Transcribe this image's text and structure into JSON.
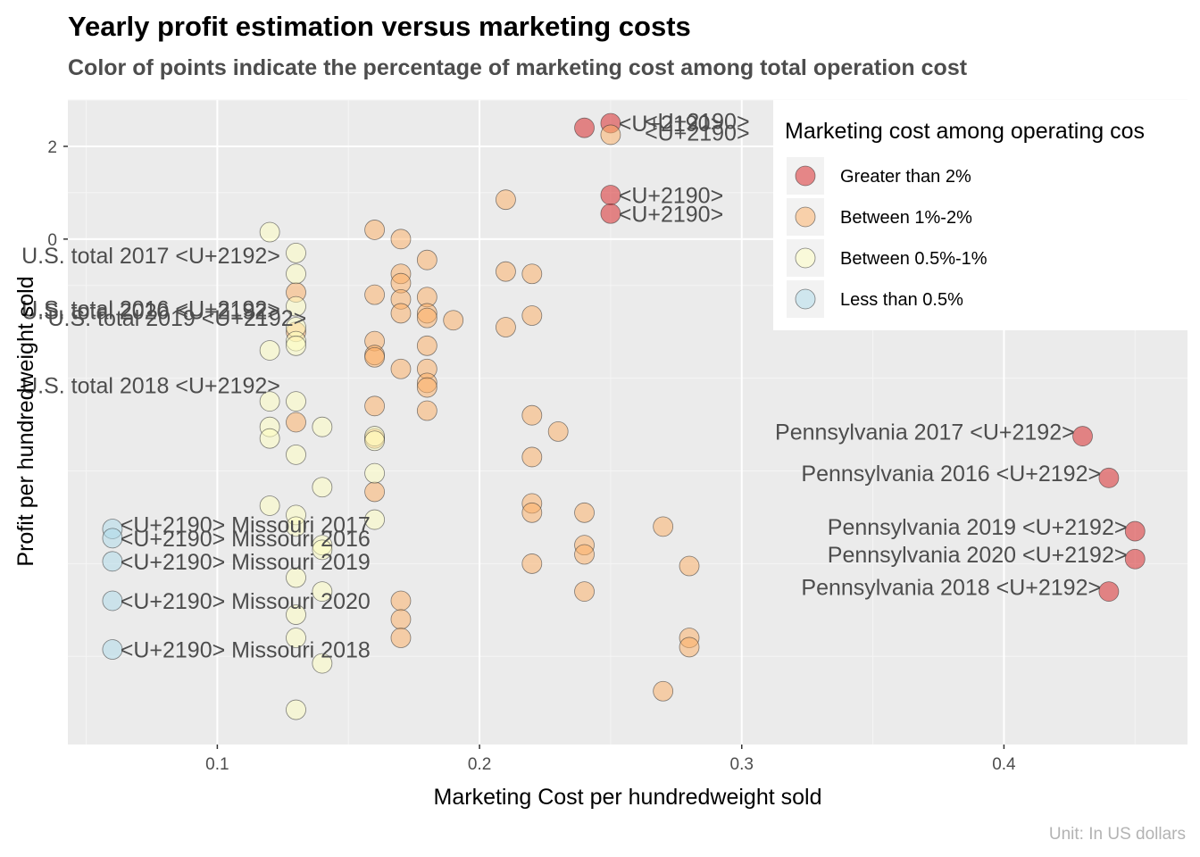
{
  "chart_data": {
    "type": "scatter",
    "title": "Yearly profit estimation versus marketing costs",
    "subtitle": "Color of points indicate the percentage of marketing cost among total operation cost",
    "xlabel": "Marketing Cost per hundredweight sold",
    "ylabel": "Profit per hundredweight sold",
    "caption": "Unit: In US dollars",
    "xlim": [
      0.043,
      0.47
    ],
    "ylim": [
      -10.9,
      3.0
    ],
    "x_ticks": [
      0.1,
      0.2,
      0.3,
      0.4
    ],
    "x_tick_labels": [
      "0.1",
      "0.2",
      "0.3",
      "0.4"
    ],
    "y_ticks": [
      2,
      0
    ],
    "y_tick_labels": [
      "2",
      "0"
    ],
    "grid": true,
    "legend": {
      "title": "Marketing cost among operating cos",
      "position": "top-right",
      "entries": [
        {
          "key": "gt2",
          "label": "Greater than 2%",
          "color": "#d7191c"
        },
        {
          "key": "b12",
          "label": "Between 1%-2%",
          "color": "#fdae61"
        },
        {
          "key": "b051",
          "label": "Between 0.5%-1%",
          "color": "#ffffbf"
        },
        {
          "key": "lt05",
          "label": "Less than 0.5%",
          "color": "#abd9e9"
        }
      ]
    },
    "points": [
      {
        "x": 0.24,
        "y": 2.4,
        "group": "gt2"
      },
      {
        "x": 0.25,
        "y": 2.5,
        "group": "gt2"
      },
      {
        "x": 0.25,
        "y": 0.95,
        "group": "gt2"
      },
      {
        "x": 0.25,
        "y": 0.55,
        "group": "gt2"
      },
      {
        "x": 0.43,
        "y": -4.25,
        "group": "gt2"
      },
      {
        "x": 0.44,
        "y": -5.15,
        "group": "gt2"
      },
      {
        "x": 0.45,
        "y": -6.3,
        "group": "gt2"
      },
      {
        "x": 0.45,
        "y": -6.9,
        "group": "gt2"
      },
      {
        "x": 0.44,
        "y": -7.6,
        "group": "gt2"
      },
      {
        "x": 0.25,
        "y": 2.25,
        "group": "b12"
      },
      {
        "x": 0.21,
        "y": 0.85,
        "group": "b12"
      },
      {
        "x": 0.16,
        "y": 0.2,
        "group": "b12"
      },
      {
        "x": 0.17,
        "y": 0.0,
        "group": "b12"
      },
      {
        "x": 0.18,
        "y": -0.45,
        "group": "b12"
      },
      {
        "x": 0.17,
        "y": -0.75,
        "group": "b12"
      },
      {
        "x": 0.17,
        "y": -0.95,
        "group": "b12"
      },
      {
        "x": 0.21,
        "y": -0.7,
        "group": "b12"
      },
      {
        "x": 0.22,
        "y": -0.75,
        "group": "b12"
      },
      {
        "x": 0.13,
        "y": -1.15,
        "group": "b12"
      },
      {
        "x": 0.16,
        "y": -1.2,
        "group": "b12"
      },
      {
        "x": 0.17,
        "y": -1.3,
        "group": "b12"
      },
      {
        "x": 0.18,
        "y": -1.25,
        "group": "b12"
      },
      {
        "x": 0.17,
        "y": -1.6,
        "group": "b12"
      },
      {
        "x": 0.18,
        "y": -1.6,
        "group": "b12"
      },
      {
        "x": 0.18,
        "y": -1.7,
        "group": "b12"
      },
      {
        "x": 0.19,
        "y": -1.75,
        "group": "b12"
      },
      {
        "x": 0.22,
        "y": -1.65,
        "group": "b12"
      },
      {
        "x": 0.21,
        "y": -1.9,
        "group": "b12"
      },
      {
        "x": 0.13,
        "y": -2.0,
        "group": "b12"
      },
      {
        "x": 0.16,
        "y": -2.2,
        "group": "b12"
      },
      {
        "x": 0.18,
        "y": -2.3,
        "group": "b12"
      },
      {
        "x": 0.16,
        "y": -2.5,
        "group": "b12"
      },
      {
        "x": 0.16,
        "y": -2.55,
        "group": "b12"
      },
      {
        "x": 0.17,
        "y": -2.8,
        "group": "b12"
      },
      {
        "x": 0.18,
        "y": -2.8,
        "group": "b12"
      },
      {
        "x": 0.18,
        "y": -3.1,
        "group": "b12"
      },
      {
        "x": 0.18,
        "y": -3.2,
        "group": "b12"
      },
      {
        "x": 0.16,
        "y": -3.6,
        "group": "b12"
      },
      {
        "x": 0.18,
        "y": -3.7,
        "group": "b12"
      },
      {
        "x": 0.13,
        "y": -3.95,
        "group": "b12"
      },
      {
        "x": 0.22,
        "y": -3.8,
        "group": "b12"
      },
      {
        "x": 0.23,
        "y": -4.15,
        "group": "b12"
      },
      {
        "x": 0.16,
        "y": -4.3,
        "group": "b12"
      },
      {
        "x": 0.22,
        "y": -4.7,
        "group": "b12"
      },
      {
        "x": 0.16,
        "y": -5.45,
        "group": "b12"
      },
      {
        "x": 0.22,
        "y": -5.7,
        "group": "b12"
      },
      {
        "x": 0.22,
        "y": -5.9,
        "group": "b12"
      },
      {
        "x": 0.24,
        "y": -5.9,
        "group": "b12"
      },
      {
        "x": 0.27,
        "y": -6.2,
        "group": "b12"
      },
      {
        "x": 0.24,
        "y": -6.6,
        "group": "b12"
      },
      {
        "x": 0.24,
        "y": -6.8,
        "group": "b12"
      },
      {
        "x": 0.22,
        "y": -7.0,
        "group": "b12"
      },
      {
        "x": 0.28,
        "y": -7.05,
        "group": "b12"
      },
      {
        "x": 0.24,
        "y": -7.6,
        "group": "b12"
      },
      {
        "x": 0.17,
        "y": -7.8,
        "group": "b12"
      },
      {
        "x": 0.17,
        "y": -8.2,
        "group": "b12"
      },
      {
        "x": 0.17,
        "y": -8.6,
        "group": "b12"
      },
      {
        "x": 0.28,
        "y": -8.6,
        "group": "b12"
      },
      {
        "x": 0.28,
        "y": -8.8,
        "group": "b12"
      },
      {
        "x": 0.27,
        "y": -9.75,
        "group": "b12"
      },
      {
        "x": 0.12,
        "y": 0.15,
        "group": "b051"
      },
      {
        "x": 0.13,
        "y": -0.3,
        "group": "b051"
      },
      {
        "x": 0.13,
        "y": -0.75,
        "group": "b051"
      },
      {
        "x": 0.13,
        "y": -1.45,
        "group": "b051"
      },
      {
        "x": 0.13,
        "y": -1.9,
        "group": "b051"
      },
      {
        "x": 0.13,
        "y": -2.2,
        "group": "b051"
      },
      {
        "x": 0.12,
        "y": -2.4,
        "group": "b051"
      },
      {
        "x": 0.13,
        "y": -2.3,
        "group": "b051"
      },
      {
        "x": 0.12,
        "y": -3.5,
        "group": "b051"
      },
      {
        "x": 0.13,
        "y": -3.5,
        "group": "b051"
      },
      {
        "x": 0.12,
        "y": -4.05,
        "group": "b051"
      },
      {
        "x": 0.12,
        "y": -4.3,
        "group": "b051"
      },
      {
        "x": 0.14,
        "y": -4.05,
        "group": "b051"
      },
      {
        "x": 0.16,
        "y": -4.25,
        "group": "b051"
      },
      {
        "x": 0.16,
        "y": -4.35,
        "group": "b051"
      },
      {
        "x": 0.13,
        "y": -4.65,
        "group": "b051"
      },
      {
        "x": 0.16,
        "y": -5.05,
        "group": "b051"
      },
      {
        "x": 0.14,
        "y": -5.35,
        "group": "b051"
      },
      {
        "x": 0.12,
        "y": -5.75,
        "group": "b051"
      },
      {
        "x": 0.13,
        "y": -5.95,
        "group": "b051"
      },
      {
        "x": 0.13,
        "y": -6.2,
        "group": "b051"
      },
      {
        "x": 0.16,
        "y": -6.05,
        "group": "b051"
      },
      {
        "x": 0.14,
        "y": -6.6,
        "group": "b051"
      },
      {
        "x": 0.14,
        "y": -6.7,
        "group": "b051"
      },
      {
        "x": 0.13,
        "y": -7.3,
        "group": "b051"
      },
      {
        "x": 0.14,
        "y": -7.6,
        "group": "b051"
      },
      {
        "x": 0.13,
        "y": -8.1,
        "group": "b051"
      },
      {
        "x": 0.13,
        "y": -8.6,
        "group": "b051"
      },
      {
        "x": 0.14,
        "y": -9.15,
        "group": "b051"
      },
      {
        "x": 0.13,
        "y": -10.15,
        "group": "b051"
      },
      {
        "x": 0.06,
        "y": -6.25,
        "group": "lt05"
      },
      {
        "x": 0.06,
        "y": -6.45,
        "group": "lt05"
      },
      {
        "x": 0.06,
        "y": -6.95,
        "group": "lt05"
      },
      {
        "x": 0.06,
        "y": -7.8,
        "group": "lt05"
      },
      {
        "x": 0.06,
        "y": -8.85,
        "group": "lt05"
      }
    ],
    "annotations": [
      {
        "text": "<U+2190> Missouri 2017",
        "x": 0.063,
        "y": -6.15,
        "anchor": "start"
      },
      {
        "text": "<U+2190> Missouri 2016",
        "x": 0.063,
        "y": -6.45,
        "anchor": "start"
      },
      {
        "text": "<U+2190> Missouri 2019",
        "x": 0.063,
        "y": -6.95,
        "anchor": "start"
      },
      {
        "text": "<U+2190> Missouri 2020",
        "x": 0.063,
        "y": -7.8,
        "anchor": "start"
      },
      {
        "text": "<U+2190> Missouri 2018",
        "x": 0.063,
        "y": -8.85,
        "anchor": "start"
      },
      {
        "text": "Pennsylvania 2017 <U+2192>",
        "x": 0.427,
        "y": -4.15,
        "anchor": "end"
      },
      {
        "text": "Pennsylvania 2016 <U+2192>",
        "x": 0.437,
        "y": -5.05,
        "anchor": "end"
      },
      {
        "text": "Pennsylvania 2019 <U+2192>",
        "x": 0.447,
        "y": -6.2,
        "anchor": "end"
      },
      {
        "text": "Pennsylvania 2020 <U+2192>",
        "x": 0.447,
        "y": -6.8,
        "anchor": "end"
      },
      {
        "text": "Pennsylvania 2018 <U+2192>",
        "x": 0.437,
        "y": -7.5,
        "anchor": "end"
      },
      {
        "text": "U.S. total 2017 <U+2192>",
        "x": 0.124,
        "y": -0.35,
        "anchor": "end"
      },
      {
        "text": "U.S. total 2016 <U+2192>",
        "x": 0.124,
        "y": -1.5,
        "anchor": "end"
      },
      {
        "text": "U.S. total 2020 <U+2192>",
        "x": 0.124,
        "y": -1.55,
        "anchor": "end"
      },
      {
        "text": "U.S. total 2019 <U+2192>",
        "x": 0.134,
        "y": -1.7,
        "anchor": "end"
      },
      {
        "text": "U.S. total 2018 <U+2192>",
        "x": 0.124,
        "y": -3.15,
        "anchor": "end"
      },
      {
        "text": "<U+2190>",
        "x": 0.253,
        "y": 2.5,
        "anchor": "start"
      },
      {
        "text": "<U+2190>",
        "x": 0.263,
        "y": 2.55,
        "anchor": "start"
      },
      {
        "text": "<U+2190>",
        "x": 0.263,
        "y": 2.3,
        "anchor": "start"
      },
      {
        "text": "<U+2190>",
        "x": 0.253,
        "y": 0.95,
        "anchor": "start"
      },
      {
        "text": "<U+2190>",
        "x": 0.253,
        "y": 0.55,
        "anchor": "start"
      }
    ]
  }
}
